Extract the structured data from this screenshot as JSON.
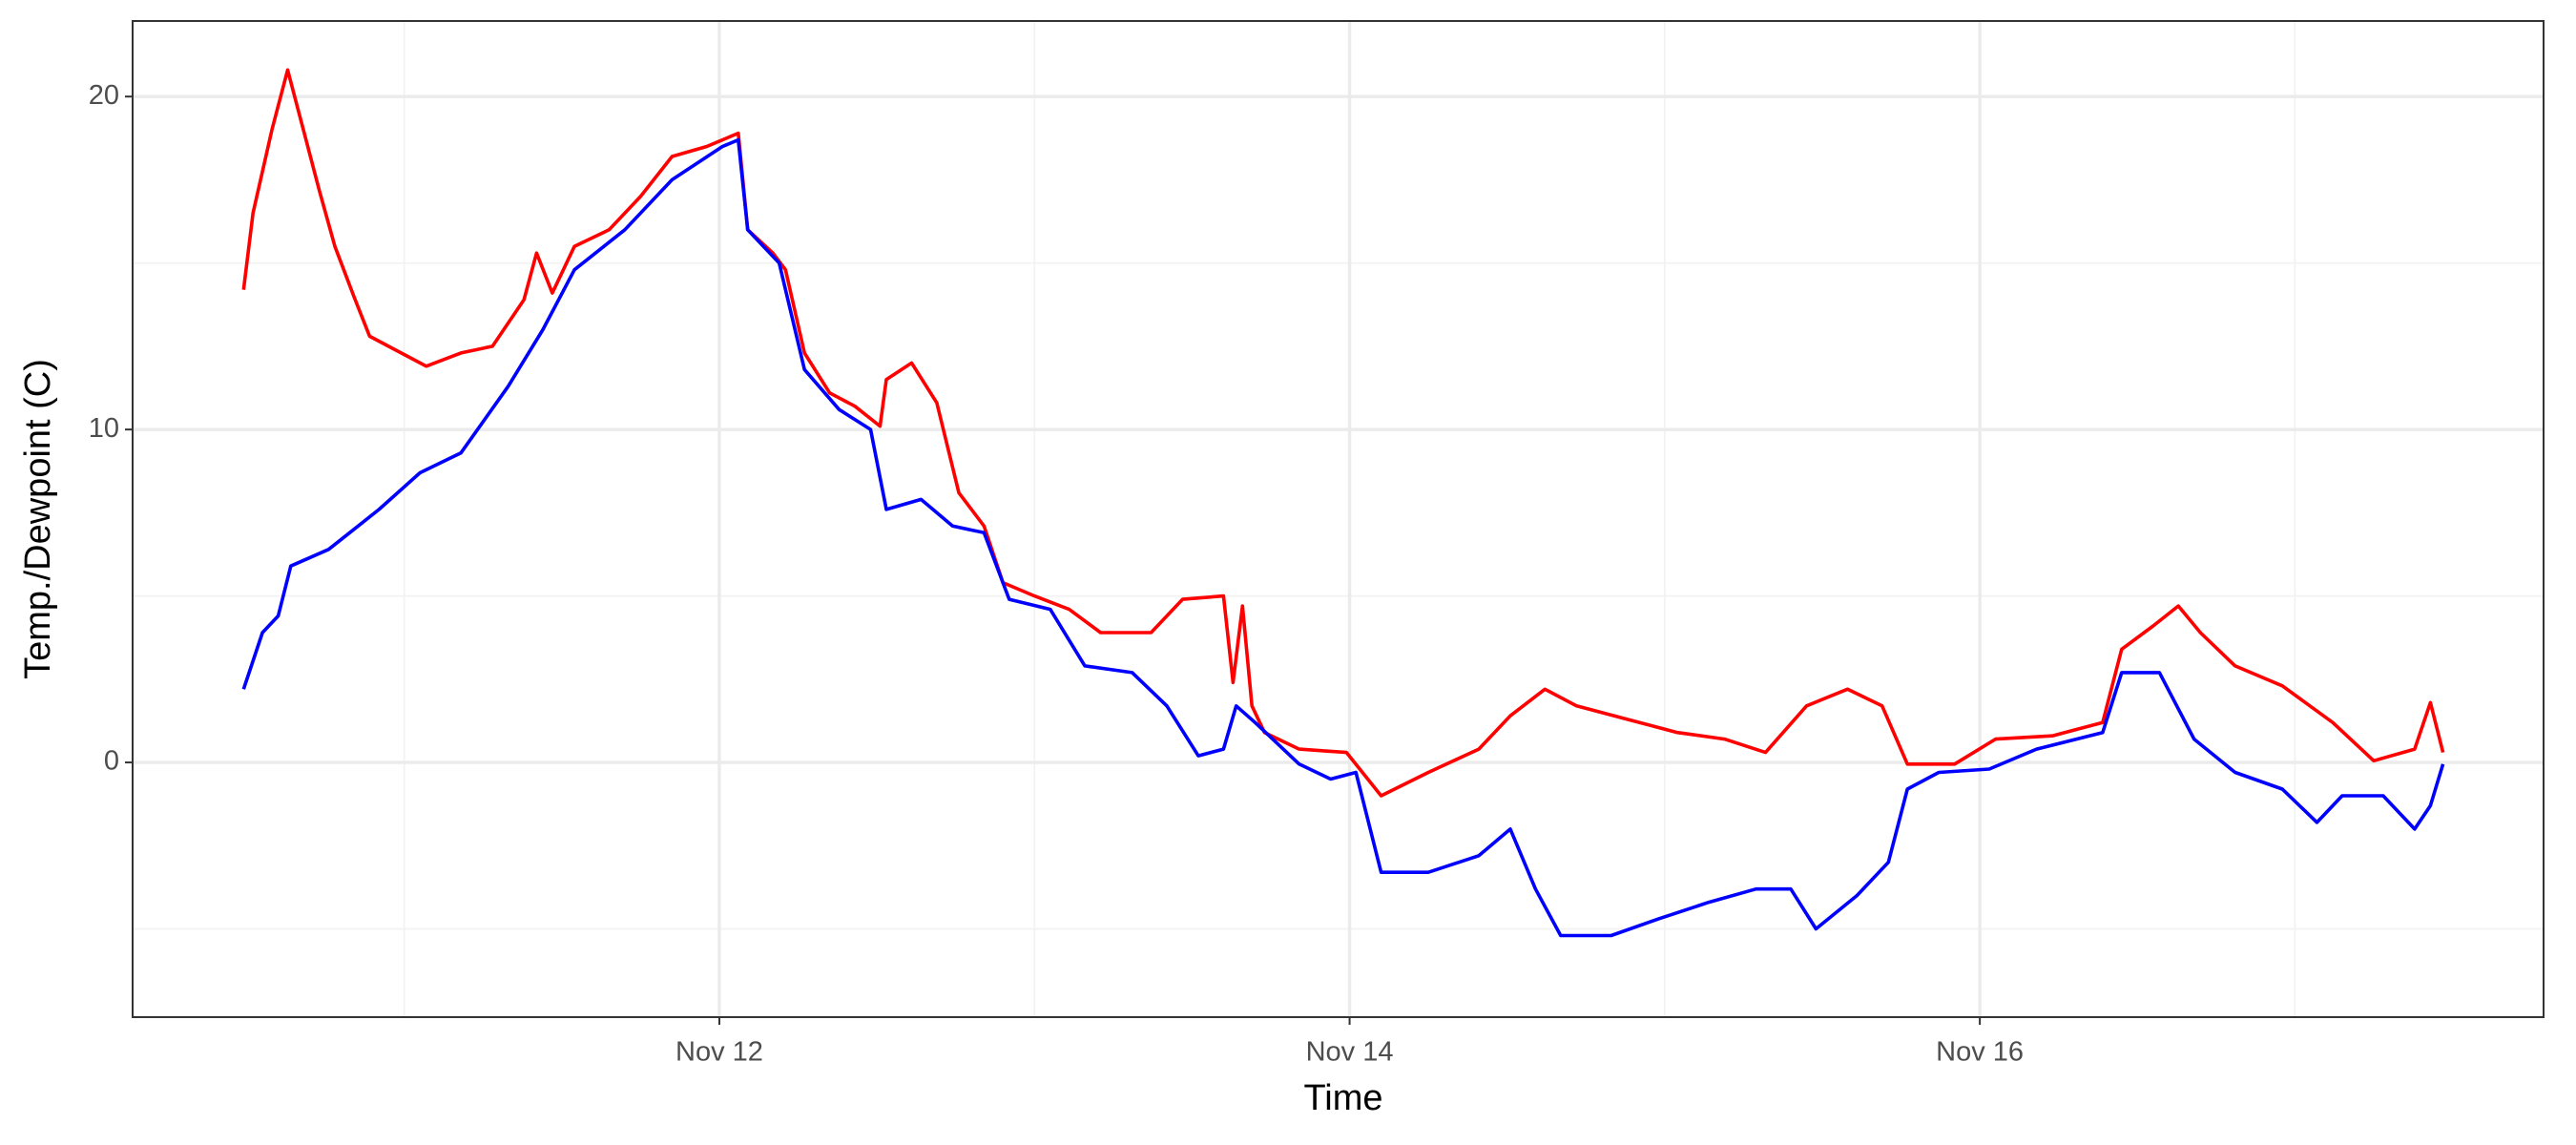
{
  "chart_data": {
    "type": "line",
    "x_label": "Time",
    "y_label": "Temp./Dewpoint (C)",
    "xlim": [
      10.138,
      17.789
    ],
    "ylim": [
      -7.65,
      22.27
    ],
    "xticks": [
      {
        "value": 12,
        "label": "Nov 12"
      },
      {
        "value": 14,
        "label": "Nov 14"
      },
      {
        "value": 16,
        "label": "Nov 16"
      }
    ],
    "xminor": [
      11,
      13,
      15,
      17
    ],
    "yticks": [
      0,
      10,
      20
    ],
    "yminor": [
      -5,
      5,
      15
    ],
    "grid": true,
    "series": [
      {
        "color": "#ff0000",
        "x": [
          10.49,
          10.52,
          10.58,
          10.63,
          10.68,
          10.73,
          10.78,
          10.84,
          10.89,
          10.97,
          11.07,
          11.18,
          11.28,
          11.38,
          11.42,
          11.47,
          11.54,
          11.65,
          11.75,
          11.85,
          11.96,
          12.06,
          12.09,
          12.17,
          12.21,
          12.27,
          12.35,
          12.43,
          12.51,
          12.53,
          12.61,
          12.69,
          12.76,
          12.84,
          12.9,
          13.0,
          13.11,
          13.21,
          13.37,
          13.47,
          13.6,
          13.63,
          13.66,
          13.69,
          13.73,
          13.84,
          13.99,
          14.1,
          14.25,
          14.41,
          14.51,
          14.62,
          14.72,
          14.88,
          15.04,
          15.19,
          15.32,
          15.45,
          15.58,
          15.69,
          15.77,
          15.92,
          16.05,
          16.23,
          16.39,
          16.45,
          16.55,
          16.63,
          16.7,
          16.81,
          16.96,
          17.12,
          17.25,
          17.38,
          17.43,
          17.47
        ],
        "values": [
          14.2,
          16.5,
          19.0,
          20.8,
          19.0,
          17.2,
          15.5,
          14.0,
          12.8,
          12.4,
          11.9,
          12.3,
          12.5,
          13.9,
          15.3,
          14.1,
          15.5,
          16.0,
          17.0,
          18.2,
          18.5,
          18.9,
          16.0,
          15.3,
          14.8,
          12.3,
          11.1,
          10.7,
          10.1,
          11.5,
          12.0,
          10.8,
          8.1,
          7.1,
          5.4,
          5.0,
          4.6,
          3.9,
          3.9,
          4.9,
          5.0,
          2.4,
          4.7,
          1.7,
          0.9,
          0.4,
          0.3,
          -1.0,
          -0.3,
          0.4,
          1.4,
          2.2,
          1.7,
          1.3,
          0.9,
          0.7,
          0.3,
          1.7,
          2.2,
          1.7,
          -0.05,
          -0.05,
          0.7,
          0.8,
          1.2,
          3.4,
          4.1,
          4.7,
          3.9,
          2.9,
          2.3,
          1.2,
          0.05,
          0.4,
          1.8,
          0.3
        ]
      },
      {
        "color": "#0000ff",
        "x": [
          10.49,
          10.55,
          10.6,
          10.64,
          10.76,
          10.92,
          11.05,
          11.18,
          11.33,
          11.44,
          11.54,
          11.7,
          11.85,
          12.01,
          12.06,
          12.09,
          12.19,
          12.27,
          12.38,
          12.48,
          12.53,
          12.64,
          12.74,
          12.84,
          12.92,
          13.05,
          13.16,
          13.31,
          13.42,
          13.52,
          13.6,
          13.64,
          13.7,
          13.84,
          13.94,
          14.02,
          14.1,
          14.25,
          14.41,
          14.51,
          14.59,
          14.67,
          14.83,
          14.98,
          15.14,
          15.29,
          15.4,
          15.48,
          15.61,
          15.71,
          15.77,
          15.87,
          16.03,
          16.18,
          16.39,
          16.45,
          16.57,
          16.68,
          16.81,
          16.96,
          17.07,
          17.15,
          17.28,
          17.38,
          17.43,
          17.47
        ],
        "values": [
          2.2,
          3.9,
          4.4,
          5.9,
          6.4,
          7.6,
          8.7,
          9.3,
          11.3,
          13.0,
          14.8,
          16.0,
          17.5,
          18.5,
          18.7,
          16.0,
          15.0,
          11.8,
          10.6,
          10.0,
          7.6,
          7.9,
          7.1,
          6.9,
          4.9,
          4.6,
          2.9,
          2.7,
          1.7,
          0.2,
          0.4,
          1.7,
          1.2,
          -0.05,
          -0.5,
          -0.3,
          -3.3,
          -3.3,
          -2.8,
          -2.0,
          -3.8,
          -5.2,
          -5.2,
          -4.7,
          -4.2,
          -3.8,
          -3.8,
          -5.0,
          -4.0,
          -3.0,
          -0.8,
          -0.3,
          -0.2,
          0.4,
          0.9,
          2.7,
          2.7,
          0.7,
          -0.3,
          -0.8,
          -1.8,
          -1.0,
          -1.0,
          -2.0,
          -1.3,
          -0.05
        ]
      }
    ]
  }
}
